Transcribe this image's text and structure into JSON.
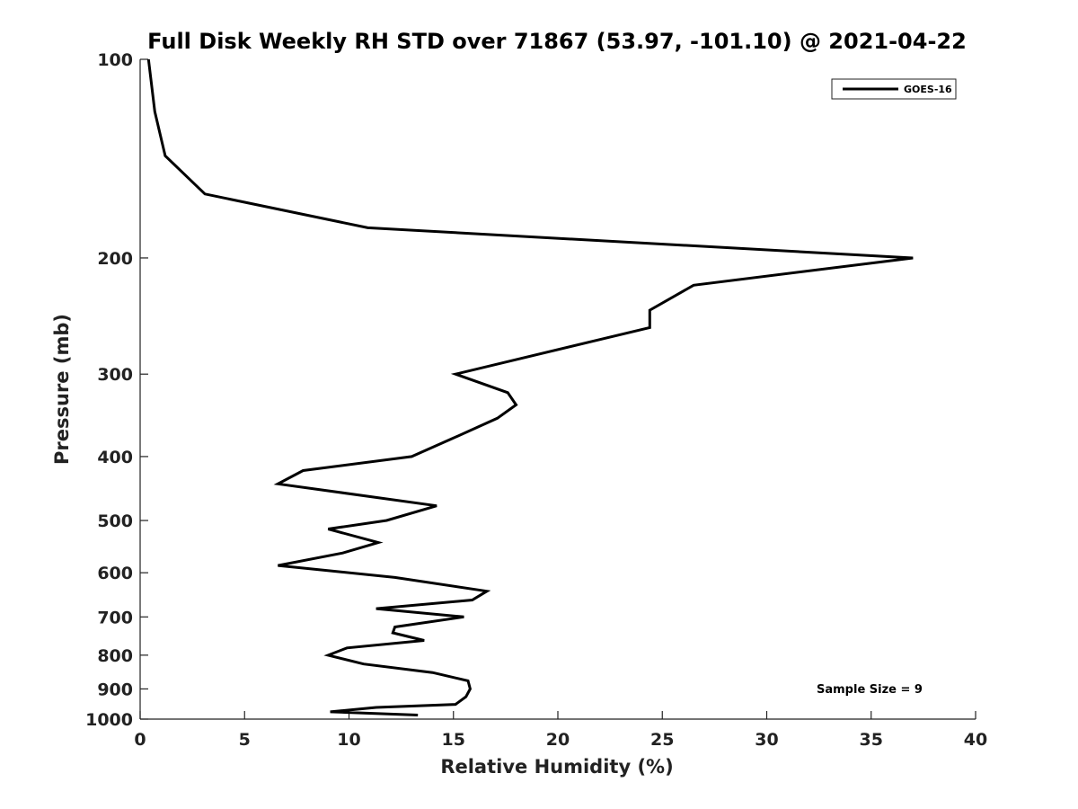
{
  "chart_data": {
    "type": "line",
    "title": "Full Disk Weekly RH STD over 71867 (53.97, -101.10) @ 2021-04-22",
    "xlabel": "Relative Humidity (%)",
    "ylabel": "Pressure (mb)",
    "xlim": [
      0,
      40
    ],
    "ylim": [
      100,
      1000
    ],
    "y_scale": "log",
    "y_reversed": true,
    "grid": false,
    "legend_position": "top-right",
    "x_ticks": [
      0,
      5,
      10,
      15,
      20,
      25,
      30,
      35,
      40
    ],
    "y_ticks": [
      100,
      200,
      300,
      400,
      500,
      600,
      700,
      800,
      900,
      1000
    ],
    "line_color": "#000000",
    "series": [
      {
        "name": "GOES-16",
        "points": [
          [
            0.4,
            100
          ],
          [
            0.7,
            120
          ],
          [
            1.2,
            140
          ],
          [
            3.1,
            160
          ],
          [
            10.9,
            180
          ],
          [
            37.0,
            200
          ],
          [
            26.5,
            220
          ],
          [
            24.4,
            240
          ],
          [
            24.4,
            255
          ],
          [
            15.1,
            300
          ],
          [
            17.6,
            320
          ],
          [
            18.0,
            334
          ],
          [
            17.1,
            350
          ],
          [
            15.0,
            375
          ],
          [
            13.0,
            400
          ],
          [
            7.8,
            420
          ],
          [
            6.6,
            440
          ],
          [
            14.2,
            475
          ],
          [
            11.8,
            500
          ],
          [
            9.0,
            515
          ],
          [
            11.4,
            540
          ],
          [
            9.7,
            560
          ],
          [
            6.6,
            585
          ],
          [
            12.2,
            610
          ],
          [
            16.6,
            640
          ],
          [
            15.9,
            660
          ],
          [
            11.3,
            680
          ],
          [
            15.5,
            700
          ],
          [
            12.2,
            725
          ],
          [
            12.1,
            740
          ],
          [
            13.6,
            760
          ],
          [
            9.9,
            780
          ],
          [
            9.0,
            800
          ],
          [
            10.7,
            825
          ],
          [
            14.0,
            850
          ],
          [
            15.7,
            875
          ],
          [
            15.8,
            900
          ],
          [
            15.6,
            925
          ],
          [
            15.1,
            950
          ],
          [
            11.3,
            960
          ],
          [
            9.1,
            975
          ],
          [
            13.3,
            986
          ]
        ]
      }
    ],
    "annotation": "Sample Size = 9"
  }
}
